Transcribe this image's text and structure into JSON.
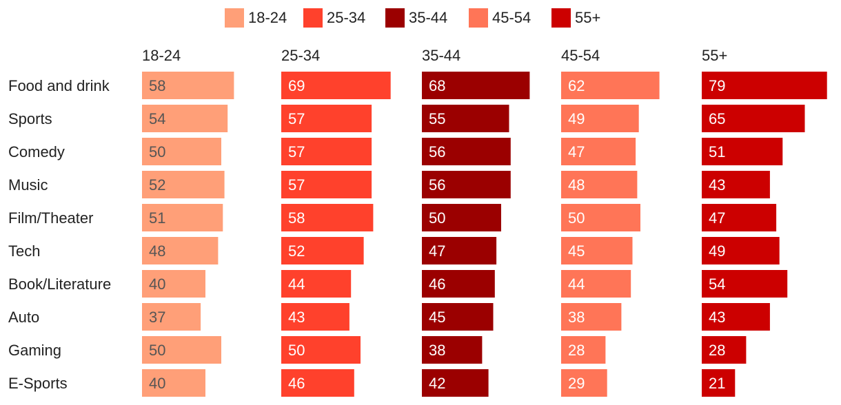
{
  "chart_data": {
    "type": "bar",
    "orientation": "horizontal",
    "layout": "small-multiples",
    "legend_position": "top",
    "categories": [
      "Food and drink",
      "Sports",
      "Comedy",
      "Music",
      "Film/Theater",
      "Tech",
      "Book/Literature",
      "Auto",
      "Gaming",
      "E-Sports"
    ],
    "series": [
      {
        "name": "18-24",
        "color": "#FF9F78",
        "label_color": "#555555",
        "values": [
          58,
          54,
          50,
          52,
          51,
          48,
          40,
          37,
          50,
          40
        ]
      },
      {
        "name": "25-34",
        "color": "#FF412C",
        "label_color": "#FFFFFF",
        "values": [
          69,
          57,
          57,
          57,
          58,
          52,
          44,
          43,
          50,
          46
        ]
      },
      {
        "name": "35-44",
        "color": "#9B0000",
        "label_color": "#FFFFFF",
        "values": [
          68,
          55,
          56,
          56,
          50,
          47,
          46,
          45,
          38,
          42
        ]
      },
      {
        "name": "45-54",
        "color": "#FF7557",
        "label_color": "#FFFFFF",
        "values": [
          62,
          49,
          47,
          48,
          50,
          45,
          44,
          38,
          28,
          29
        ]
      },
      {
        "name": "55+",
        "color": "#CC0000",
        "label_color": "#FFFFFF",
        "values": [
          79,
          65,
          51,
          43,
          47,
          49,
          54,
          43,
          28,
          21
        ]
      }
    ],
    "xlim": [
      0,
      80
    ],
    "grid": false
  }
}
